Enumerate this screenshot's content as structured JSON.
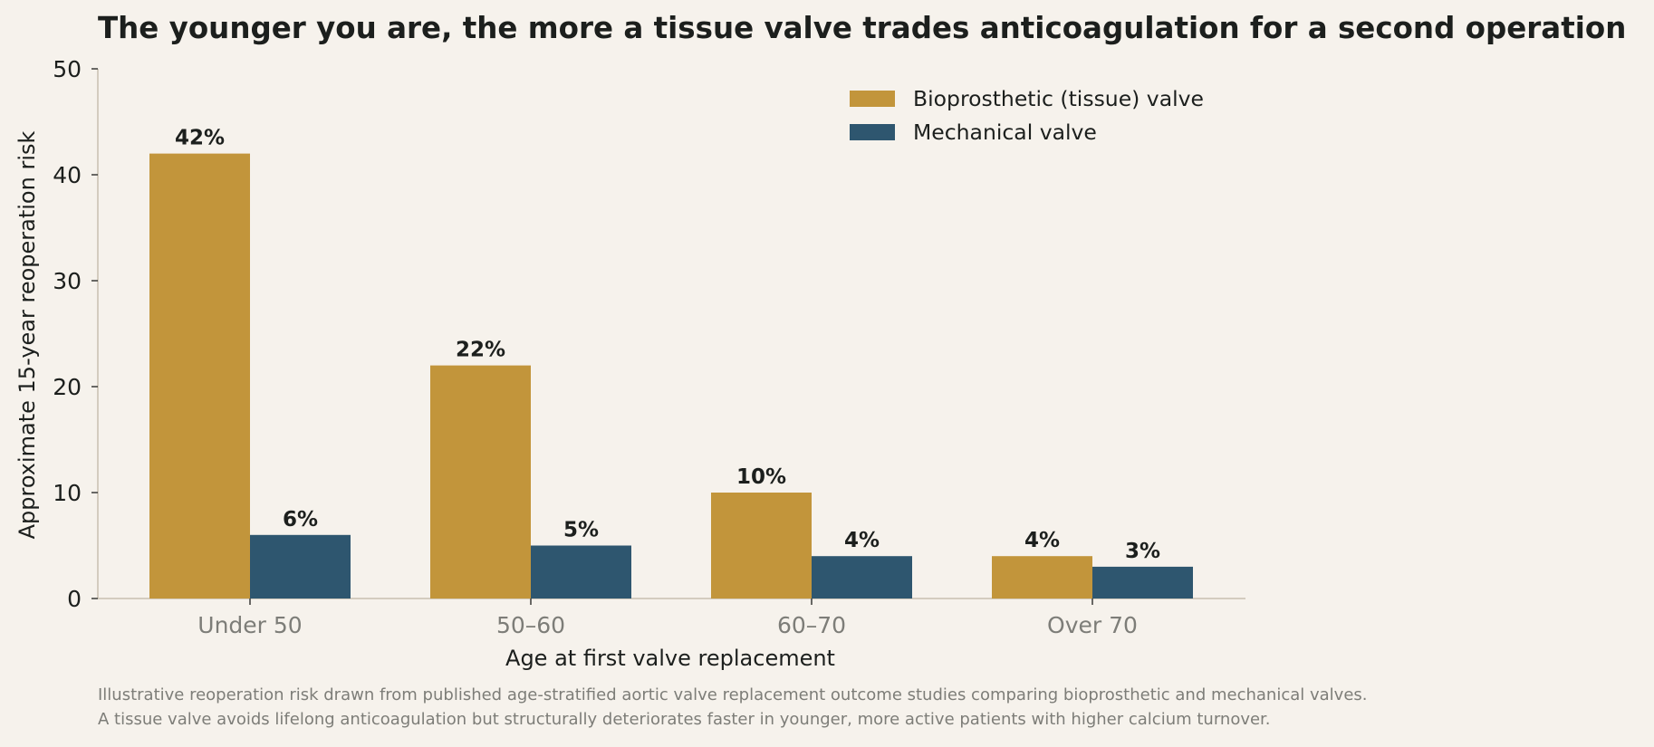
{
  "chart_data": {
    "type": "bar",
    "title": "The younger you are, the more a tissue valve trades anticoagulation for a second operation",
    "xlabel": "Age at first valve replacement",
    "ylabel": "Approximate 15-year reoperation risk",
    "categories": [
      "Under 50",
      "50–60",
      "60–70",
      "Over 70"
    ],
    "ylim": [
      0,
      50
    ],
    "yticks": [
      0,
      10,
      20,
      30,
      40,
      50
    ],
    "series": [
      {
        "name": "Bioprosthetic (tissue) valve",
        "values": [
          42,
          22,
          10,
          4
        ],
        "labels": [
          "42%",
          "22%",
          "10%",
          "4%"
        ],
        "color": "#c2953b"
      },
      {
        "name": "Mechanical valve",
        "values": [
          6,
          5,
          4,
          3
        ],
        "labels": [
          "6%",
          "5%",
          "4%",
          "3%"
        ],
        "color": "#2e566f"
      }
    ],
    "legend": "top-right",
    "grid": false
  },
  "footnotes": [
    "Illustrative reoperation risk drawn from published age-stratified aortic valve replacement outcome studies comparing bioprosthetic and mechanical valves.",
    "A tissue valve avoids lifelong anticoagulation but structurally deteriorates faster in younger, more active patients with higher calcium turnover."
  ],
  "colors": {
    "background": "#f6f2ec",
    "axis": "#c8c0b0",
    "text": "#1c1f1d",
    "tick_label": "#7d7d78"
  }
}
